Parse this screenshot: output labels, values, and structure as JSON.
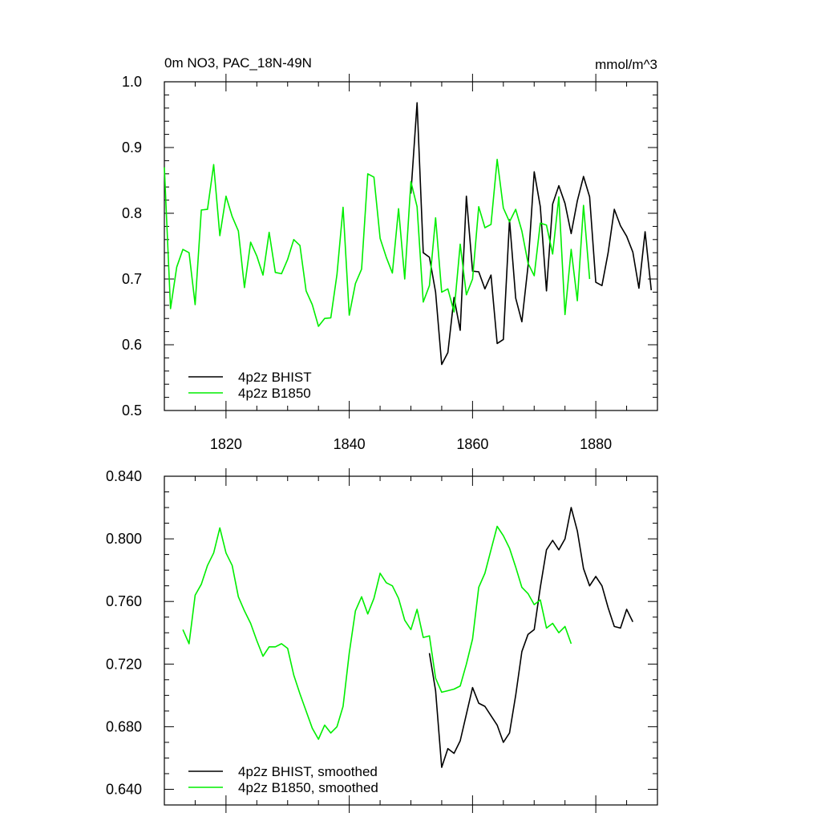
{
  "header": {
    "title": "0m NO3, PAC_18N-49N",
    "units": "mmol/m^3"
  },
  "colors": {
    "bhist": "#000000",
    "b1850": "#00ee00",
    "axis": "#000000",
    "background": "#ffffff"
  },
  "chart_data": [
    {
      "type": "line",
      "title": "0m NO3, PAC_18N-49N",
      "units_label": "mmol/m^3",
      "xlabel": "",
      "ylabel": "",
      "xlim": [
        1810,
        1890
      ],
      "ylim": [
        0.5,
        1.0
      ],
      "xticks": [
        1820,
        1840,
        1860,
        1880
      ],
      "yticks": [
        0.5,
        0.6,
        0.7,
        0.8,
        0.9,
        1.0
      ],
      "ytick_labels": [
        "0.5",
        "0.6",
        "0.7",
        "0.8",
        "0.9",
        "1.0"
      ],
      "grid": false,
      "legend_position": "bottom-left",
      "series": [
        {
          "name": "4p2z BHIST",
          "color": "#000000",
          "x": [
            1850,
            1851,
            1852,
            1853,
            1854,
            1855,
            1856,
            1857,
            1858,
            1859,
            1860,
            1861,
            1862,
            1863,
            1864,
            1865,
            1866,
            1867,
            1868,
            1869,
            1870,
            1871,
            1872,
            1873,
            1874,
            1875,
            1876,
            1877,
            1878,
            1879,
            1880,
            1881,
            1882,
            1883,
            1884,
            1885,
            1886,
            1887,
            1888,
            1889
          ],
          "y": [
            0.83,
            0.968,
            0.74,
            0.733,
            0.68,
            0.57,
            0.588,
            0.672,
            0.622,
            0.826,
            0.712,
            0.711,
            0.685,
            0.706,
            0.602,
            0.608,
            0.79,
            0.671,
            0.635,
            0.72,
            0.863,
            0.81,
            0.682,
            0.814,
            0.842,
            0.815,
            0.769,
            0.819,
            0.856,
            0.825,
            0.695,
            0.69,
            0.74,
            0.806,
            0.781,
            0.765,
            0.741,
            0.686,
            0.772,
            0.683
          ]
        },
        {
          "name": "4p2z B1850",
          "color": "#00ee00",
          "x": [
            1810,
            1811,
            1812,
            1813,
            1814,
            1815,
            1816,
            1817,
            1818,
            1819,
            1820,
            1821,
            1822,
            1823,
            1824,
            1825,
            1826,
            1827,
            1828,
            1829,
            1830,
            1831,
            1832,
            1833,
            1834,
            1835,
            1836,
            1837,
            1838,
            1839,
            1840,
            1841,
            1842,
            1843,
            1844,
            1845,
            1846,
            1847,
            1848,
            1849,
            1850,
            1851,
            1852,
            1853,
            1854,
            1855,
            1856,
            1857,
            1858,
            1859,
            1860,
            1861,
            1862,
            1863,
            1864,
            1865,
            1866,
            1867,
            1868,
            1869,
            1870,
            1871,
            1872,
            1873,
            1874,
            1875,
            1876,
            1877,
            1878,
            1879
          ],
          "y": [
            0.87,
            0.655,
            0.718,
            0.745,
            0.74,
            0.661,
            0.805,
            0.806,
            0.874,
            0.766,
            0.826,
            0.795,
            0.773,
            0.687,
            0.756,
            0.735,
            0.706,
            0.771,
            0.71,
            0.708,
            0.73,
            0.76,
            0.751,
            0.682,
            0.661,
            0.628,
            0.64,
            0.641,
            0.707,
            0.809,
            0.645,
            0.693,
            0.715,
            0.86,
            0.855,
            0.762,
            0.733,
            0.709,
            0.807,
            0.7,
            0.848,
            0.81,
            0.665,
            0.69,
            0.793,
            0.68,
            0.685,
            0.65,
            0.753,
            0.676,
            0.7,
            0.81,
            0.778,
            0.783,
            0.882,
            0.808,
            0.787,
            0.806,
            0.773,
            0.724,
            0.705,
            0.785,
            0.782,
            0.738,
            0.825,
            0.646,
            0.745,
            0.667,
            0.812,
            0.7
          ]
        }
      ]
    },
    {
      "type": "line",
      "title": "",
      "xlabel": "",
      "ylabel": "",
      "xlim": [
        1810,
        1890
      ],
      "ylim": [
        0.63,
        0.84
      ],
      "xticks": [
        1820,
        1840,
        1860,
        1880
      ],
      "yticks": [
        0.64,
        0.68,
        0.72,
        0.76,
        0.8,
        0.84
      ],
      "ytick_labels": [
        "0.640",
        "0.680",
        "0.720",
        "0.760",
        "0.800",
        "0.840"
      ],
      "grid": false,
      "legend_position": "bottom-left",
      "series": [
        {
          "name": "4p2z BHIST, smoothed",
          "color": "#000000",
          "x": [
            1853,
            1854,
            1855,
            1856,
            1857,
            1858,
            1859,
            1860,
            1861,
            1862,
            1863,
            1864,
            1865,
            1866,
            1867,
            1868,
            1869,
            1870,
            1871,
            1872,
            1873,
            1874,
            1875,
            1876,
            1877,
            1878,
            1879,
            1880,
            1881,
            1882,
            1883,
            1884,
            1885,
            1886
          ],
          "y": [
            0.727,
            0.703,
            0.654,
            0.666,
            0.663,
            0.671,
            0.688,
            0.705,
            0.695,
            0.693,
            0.687,
            0.681,
            0.67,
            0.676,
            0.7,
            0.728,
            0.739,
            0.742,
            0.769,
            0.793,
            0.799,
            0.793,
            0.8,
            0.82,
            0.805,
            0.781,
            0.77,
            0.776,
            0.77,
            0.756,
            0.744,
            0.743,
            0.755,
            0.747
          ]
        },
        {
          "name": "4p2z B1850, smoothed",
          "color": "#00ee00",
          "x": [
            1813,
            1814,
            1815,
            1816,
            1817,
            1818,
            1819,
            1820,
            1821,
            1822,
            1823,
            1824,
            1825,
            1826,
            1827,
            1828,
            1829,
            1830,
            1831,
            1832,
            1833,
            1834,
            1835,
            1836,
            1837,
            1838,
            1839,
            1840,
            1841,
            1842,
            1843,
            1844,
            1845,
            1846,
            1847,
            1848,
            1849,
            1850,
            1851,
            1852,
            1853,
            1854,
            1855,
            1856,
            1857,
            1858,
            1859,
            1860,
            1861,
            1862,
            1863,
            1864,
            1865,
            1866,
            1867,
            1868,
            1869,
            1870,
            1871,
            1872,
            1873,
            1874,
            1875,
            1876
          ],
          "y": [
            0.742,
            0.733,
            0.764,
            0.771,
            0.783,
            0.791,
            0.807,
            0.791,
            0.783,
            0.763,
            0.754,
            0.746,
            0.735,
            0.725,
            0.731,
            0.731,
            0.733,
            0.73,
            0.713,
            0.701,
            0.69,
            0.679,
            0.672,
            0.681,
            0.676,
            0.68,
            0.693,
            0.727,
            0.754,
            0.763,
            0.752,
            0.762,
            0.778,
            0.772,
            0.77,
            0.762,
            0.748,
            0.742,
            0.755,
            0.737,
            0.738,
            0.711,
            0.702,
            0.703,
            0.704,
            0.706,
            0.72,
            0.736,
            0.769,
            0.778,
            0.793,
            0.808,
            0.802,
            0.794,
            0.782,
            0.769,
            0.765,
            0.758,
            0.761,
            0.743,
            0.746,
            0.74,
            0.744,
            0.733
          ]
        }
      ]
    }
  ]
}
